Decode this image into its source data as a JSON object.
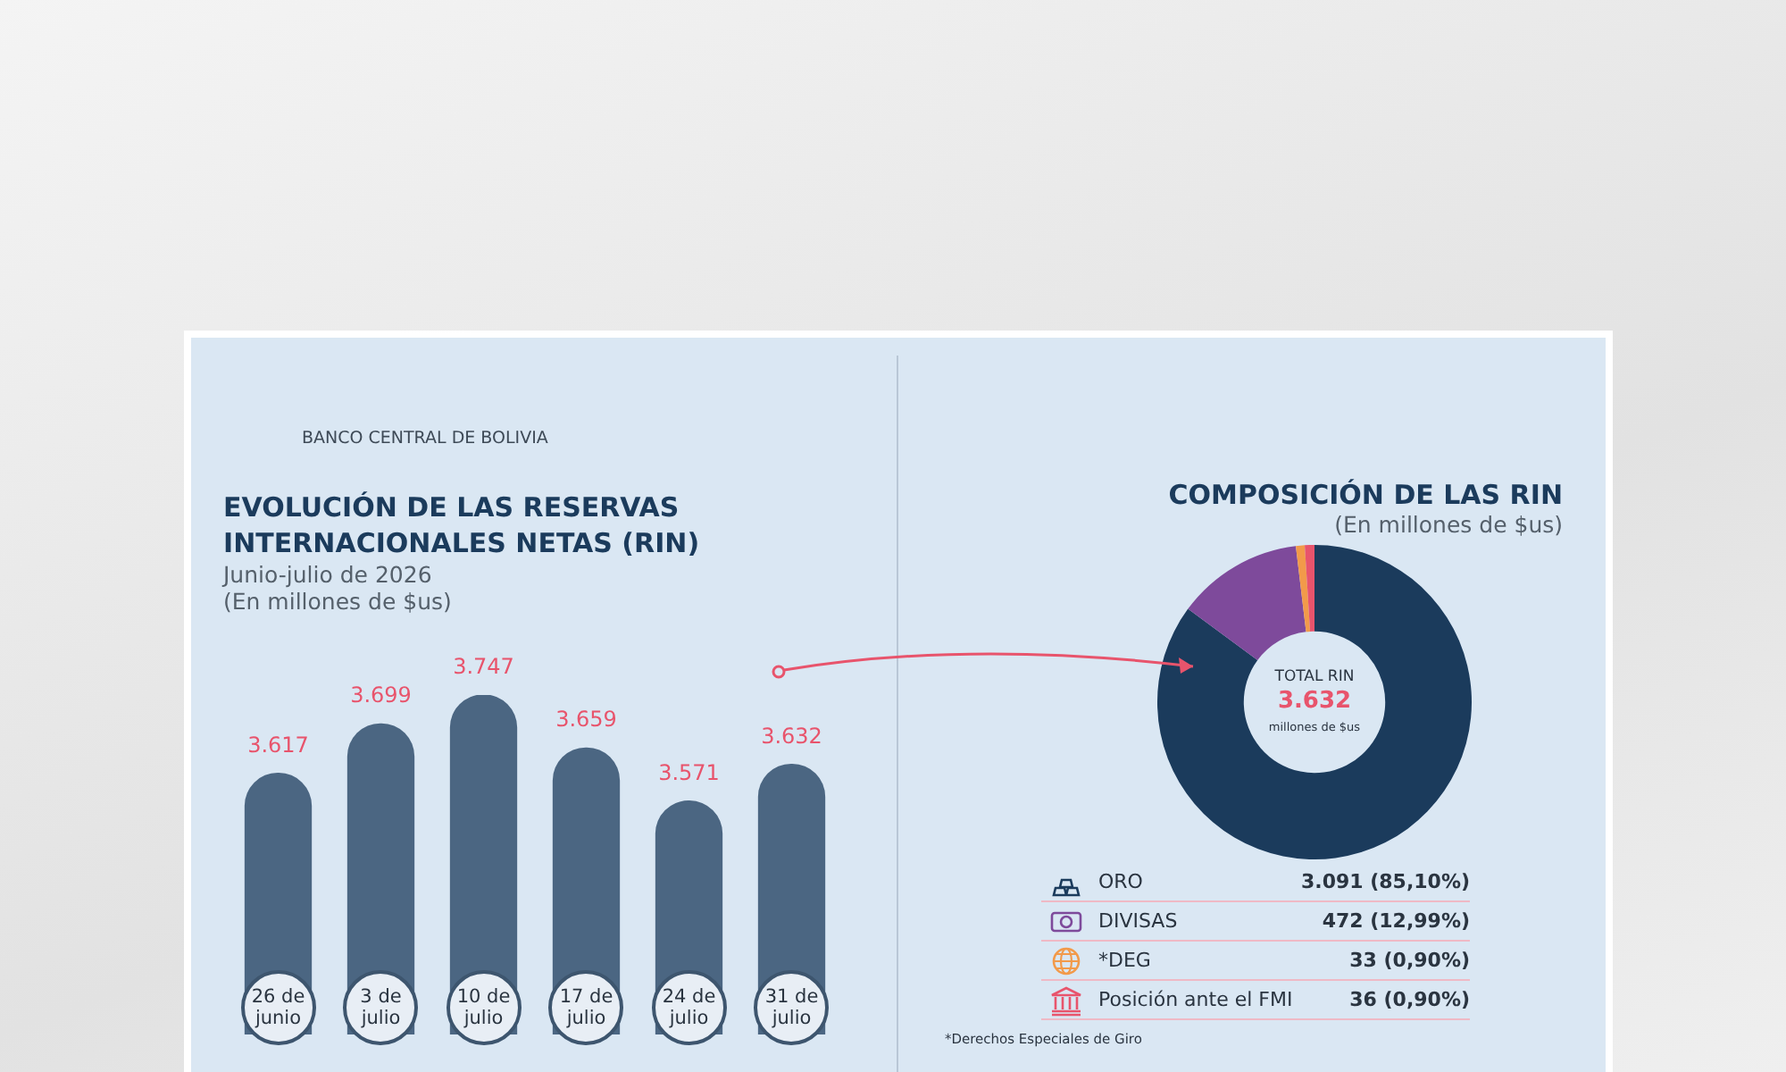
{
  "chart_data": [
    {
      "type": "bar",
      "title": "EVOLUCIÓN DE LAS RESERVAS INTERNACIONALES NETAS (RIN)",
      "subtitle": "Junio-julio de 2026",
      "annotations": [
        "BANCO CENTRAL DE BOLIVIA",
        "(En millones de $us)"
      ],
      "categories": [
        "26 de junio",
        "3 de julio",
        "10 de julio",
        "17 de julio",
        "24 de julio",
        "31 de julio"
      ],
      "values": [
        3617,
        3699,
        3747,
        3659,
        3571,
        3632
      ],
      "value_labels": [
        "3.617",
        "3.699",
        "3.747",
        "3.659",
        "3.571",
        "3.632"
      ],
      "color": "#4b6682",
      "tick_labels": "x",
      "grid": false,
      "legend": false
    },
    {
      "type": "donut",
      "title": "COMPOSICIÓN DE LAS RIN",
      "subtitle": "(En millones de $us)",
      "categories": [
        "ORO",
        "DIVISAS",
        "*DEG",
        "Posición ante el FMI"
      ],
      "values": [
        3091,
        472,
        33,
        36
      ],
      "colors": [
        "#1b3b5c",
        "#7e4a9b",
        "#f29a4a",
        "#e8546c"
      ],
      "value_labels": [
        "3.091 (85,10%)",
        "472 (12,99%)",
        "33 (0,90%)",
        "36 (0,90%)"
      ],
      "annotations": [
        "TOTAL RIN",
        "3.632",
        "millones de $us",
        "*Derechos Especiales de Giro"
      ],
      "legend": "bottom"
    }
  ]
}
